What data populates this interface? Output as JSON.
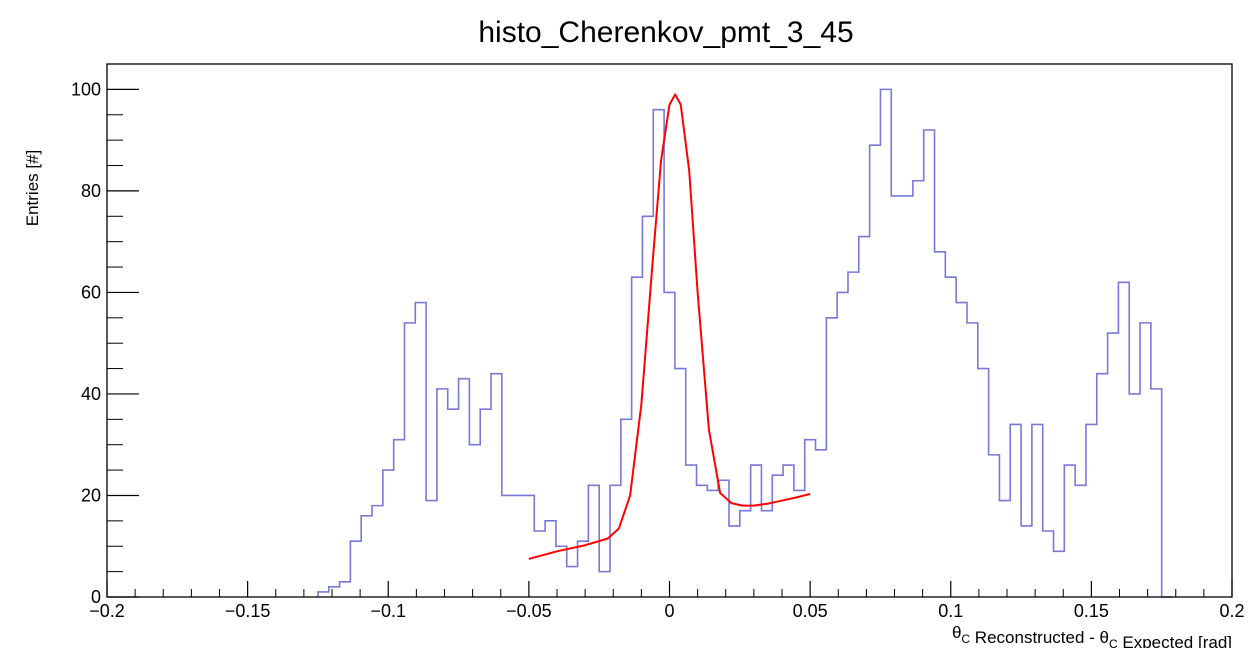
{
  "chart_data": {
    "type": "histogram",
    "title": "histo_Cherenkov_pmt_3_45",
    "ylabel": "Entries [#]",
    "xlabel": {
      "parts": [
        {
          "text": "θ",
          "sub": "C"
        },
        {
          "text": " Reconstructed - θ",
          "sub": "C"
        },
        {
          "text": " Expected   [rad]"
        }
      ]
    },
    "xlim": [
      -0.2,
      0.2
    ],
    "ylim": [
      0,
      105
    ],
    "xticks": [
      -0.2,
      -0.15,
      -0.1,
      -0.05,
      0,
      0.05,
      0.1,
      0.15,
      0.2
    ],
    "xtick_labels": [
      "−0.2",
      "−0.15",
      "−0.1",
      "−0.05",
      "0",
      "0.05",
      "0.1",
      "0.15",
      "0.2"
    ],
    "yticks": [
      0,
      20,
      40,
      60,
      80,
      100
    ],
    "ytick_labels": [
      "0",
      "20",
      "40",
      "60",
      "80",
      "100"
    ],
    "grid": false,
    "bin_edges_range": [
      -0.125,
      0.175
    ],
    "histogram_counts": [
      1,
      2,
      3,
      11,
      16,
      18,
      25,
      31,
      54,
      58,
      19,
      41,
      37,
      43,
      30,
      37,
      44,
      20,
      20,
      20,
      13,
      15,
      10,
      6,
      11,
      22,
      5,
      22,
      35,
      63,
      75,
      96,
      60,
      45,
      26,
      22,
      21,
      23,
      14,
      17,
      26,
      17,
      24,
      26,
      21,
      31,
      29,
      55,
      60,
      64,
      71,
      89,
      100,
      79,
      79,
      82,
      92,
      68,
      63,
      58,
      54,
      45,
      28,
      19,
      34,
      14,
      34,
      13,
      9,
      26,
      22,
      34,
      44,
      52,
      62,
      40,
      54,
      41,
      0
    ],
    "histogram_color": "#7878d8",
    "fit": {
      "name": "fit",
      "color": "#ff0000",
      "x": [
        -0.05,
        -0.04,
        -0.03,
        -0.022,
        -0.018,
        -0.014,
        -0.01,
        -0.006,
        -0.003,
        0,
        0.002,
        0.004,
        0.007,
        0.01,
        0.014,
        0.018,
        0.022,
        0.026,
        0.03,
        0.035,
        0.04,
        0.045,
        0.05
      ],
      "y": [
        7.5,
        9,
        10.2,
        11.5,
        13.5,
        20,
        38,
        66,
        86,
        97,
        99,
        97,
        84,
        60,
        33,
        20.5,
        18.5,
        18,
        18,
        18.4,
        19,
        19.6,
        20.3
      ]
    }
  }
}
